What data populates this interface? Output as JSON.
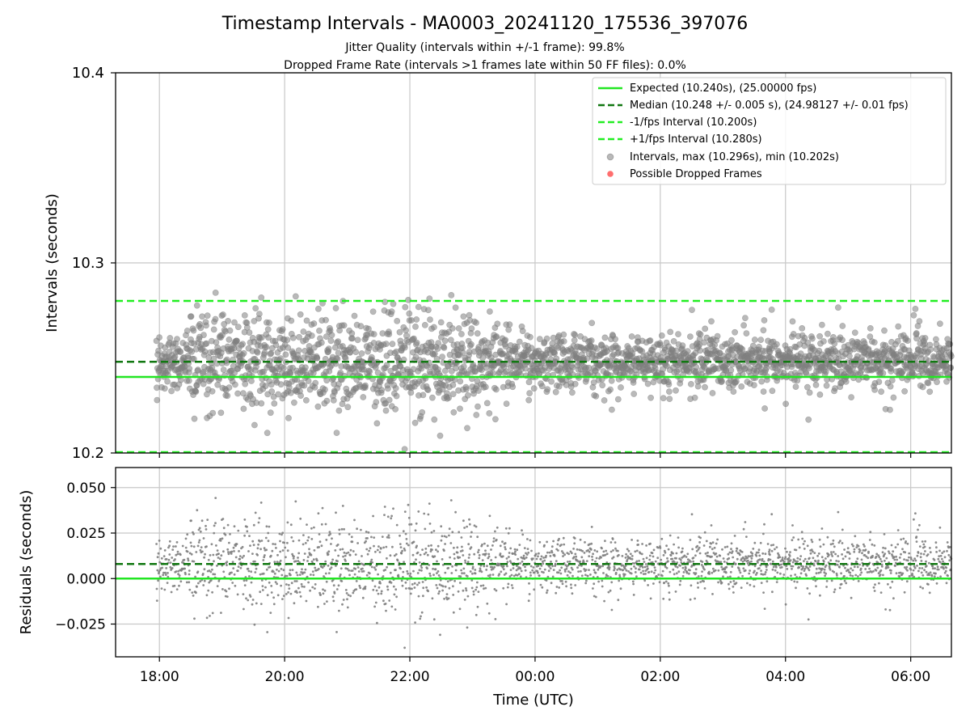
{
  "figure": {
    "title": "Timestamp Intervals - MA0003_20241120_175536_397076",
    "subtitle_1": "Jitter Quality (intervals within +/-1 frame): 99.8%",
    "subtitle_2": "Dropped Frame Rate (intervals >1 frames late within 50 FF files): 0.0%"
  },
  "colors": {
    "expected": "#22e622",
    "median": "#117711",
    "interval_bounds": "#22ee22",
    "points": "#808080",
    "dropped": "#ff5555",
    "grid": "#c8c8c8"
  },
  "chart_data": [
    {
      "type": "scatter",
      "panel": "intervals",
      "ylabel": "Intervals (seconds)",
      "ylim": [
        10.2,
        10.4
      ],
      "y_ticks": [
        "10.2",
        "10.3",
        "10.4"
      ],
      "x_range_hours_since_1800": [
        -0.7,
        12.65
      ],
      "grid": true,
      "legend_placement": "top-right",
      "lines": {
        "expected": 10.24,
        "median": 10.248,
        "minus_one_frame": 10.2,
        "plus_one_frame": 10.28
      },
      "legend": [
        {
          "key": "expected",
          "style": "solid",
          "label": "Expected (10.240s), (25.00000 fps)"
        },
        {
          "key": "median",
          "style": "dashed",
          "label": "Median (10.248 +/- 0.005 s), (24.98127 +/- 0.01 fps)"
        },
        {
          "key": "minus",
          "style": "dashed",
          "label": "-1/fps Interval (10.200s)"
        },
        {
          "key": "plus",
          "style": "dashed",
          "label": "+1/fps Interval (10.280s)"
        },
        {
          "key": "points",
          "style": "marker",
          "label": "Intervals, max (10.296s), min (10.202s)"
        },
        {
          "key": "dropped",
          "style": "marker",
          "label": "Possible Dropped Frames"
        }
      ],
      "stats": {
        "max": 10.296,
        "min": 10.202
      },
      "dropped_frames": []
    },
    {
      "type": "scatter",
      "panel": "residuals",
      "ylabel": "Residuals (seconds)",
      "ylim": [
        -0.043,
        0.061
      ],
      "y_ticks": [
        "0.050",
        "0.025",
        "0.000",
        "−0.025"
      ],
      "lines": {
        "expected": 0.0,
        "median": 0.008
      },
      "xlabel": "Time (UTC)",
      "x_ticks": [
        "18:00",
        "20:00",
        "22:00",
        "00:00",
        "02:00",
        "04:00",
        "06:00"
      ],
      "grid": true
    }
  ]
}
